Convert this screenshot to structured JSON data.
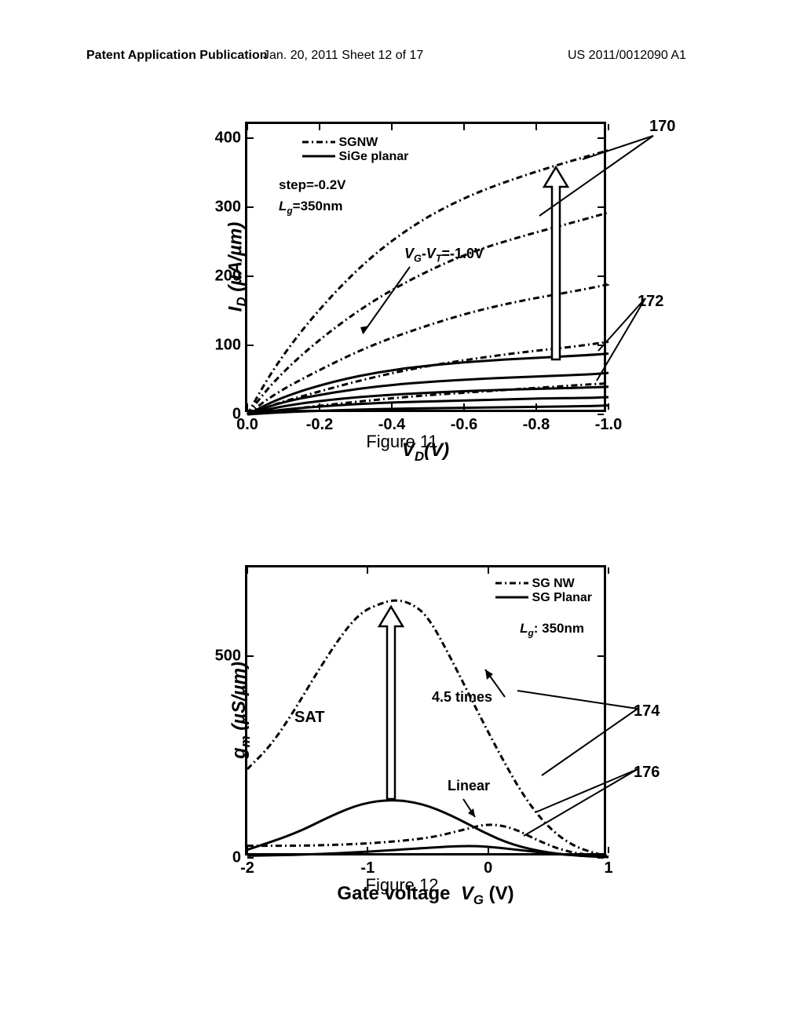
{
  "header": {
    "left": "Patent Application Publication",
    "mid": "Jan. 20, 2011  Sheet 12 of 17",
    "right": "US 2011/0012090 A1"
  },
  "fig11": {
    "type": "line",
    "caption": "Figure 11",
    "y_label_var": "I",
    "y_label_sub": "D",
    "y_label_unit": "(µA/µm)",
    "x_label_var": "V",
    "x_label_sub": "D",
    "x_label_unit": "(V)",
    "y_ticks": [
      0,
      100,
      200,
      300,
      400
    ],
    "x_ticks": [
      "0.0",
      "-0.2",
      "-0.4",
      "-0.6",
      "-0.8",
      "-1.0"
    ],
    "ylim": [
      0,
      420
    ],
    "xlim": [
      0,
      1.05
    ],
    "legend": {
      "sgnw": "SGNW",
      "planar": "SiGe planar"
    },
    "step_label": "step=-0.2V",
    "lg_label_var": "L",
    "lg_label_sub": "g",
    "lg_label_rest": "=350nm",
    "vg_label": "V",
    "vg_sub": "G",
    "vt_label": "-V",
    "vt_sub": "T",
    "vg_rest": "=-1.0V",
    "callout_170": "170",
    "callout_172": "172",
    "sgnw_curves": [
      [
        [
          0,
          0
        ],
        [
          0.08,
          70
        ],
        [
          0.2,
          148
        ],
        [
          0.35,
          225
        ],
        [
          0.5,
          280
        ],
        [
          0.65,
          318
        ],
        [
          0.8,
          345
        ],
        [
          0.95,
          368
        ],
        [
          1.05,
          382
        ]
      ],
      [
        [
          0,
          0
        ],
        [
          0.08,
          50
        ],
        [
          0.2,
          105
        ],
        [
          0.35,
          160
        ],
        [
          0.5,
          202
        ],
        [
          0.65,
          235
        ],
        [
          0.8,
          258
        ],
        [
          0.95,
          278
        ],
        [
          1.05,
          292
        ]
      ],
      [
        [
          0,
          0
        ],
        [
          0.08,
          30
        ],
        [
          0.2,
          62
        ],
        [
          0.35,
          98
        ],
        [
          0.5,
          125
        ],
        [
          0.65,
          148
        ],
        [
          0.8,
          165
        ],
        [
          0.95,
          178
        ],
        [
          1.05,
          188
        ]
      ],
      [
        [
          0,
          0
        ],
        [
          0.08,
          15
        ],
        [
          0.2,
          32
        ],
        [
          0.35,
          52
        ],
        [
          0.5,
          68
        ],
        [
          0.65,
          80
        ],
        [
          0.8,
          90
        ],
        [
          0.95,
          98
        ],
        [
          1.05,
          105
        ]
      ],
      [
        [
          0,
          0
        ],
        [
          0.08,
          5
        ],
        [
          0.2,
          12
        ],
        [
          0.35,
          20
        ],
        [
          0.5,
          27
        ],
        [
          0.65,
          32
        ],
        [
          0.8,
          37
        ],
        [
          0.95,
          42
        ],
        [
          1.05,
          45
        ]
      ]
    ],
    "planar_curves": [
      [
        [
          0,
          0
        ],
        [
          0.1,
          25
        ],
        [
          0.25,
          48
        ],
        [
          0.4,
          63
        ],
        [
          0.55,
          72
        ],
        [
          0.7,
          78
        ],
        [
          0.85,
          82
        ],
        [
          1.0,
          86
        ],
        [
          1.05,
          88
        ]
      ],
      [
        [
          0,
          0
        ],
        [
          0.1,
          18
        ],
        [
          0.25,
          32
        ],
        [
          0.4,
          42
        ],
        [
          0.55,
          48
        ],
        [
          0.7,
          52
        ],
        [
          0.85,
          55
        ],
        [
          1.0,
          58
        ],
        [
          1.05,
          60
        ]
      ],
      [
        [
          0,
          0
        ],
        [
          0.1,
          12
        ],
        [
          0.25,
          22
        ],
        [
          0.4,
          28
        ],
        [
          0.55,
          32
        ],
        [
          0.7,
          35
        ],
        [
          0.85,
          37
        ],
        [
          1.0,
          39
        ],
        [
          1.05,
          40
        ]
      ],
      [
        [
          0,
          0
        ],
        [
          0.1,
          7
        ],
        [
          0.25,
          13
        ],
        [
          0.4,
          17
        ],
        [
          0.55,
          19
        ],
        [
          0.7,
          21
        ],
        [
          0.85,
          23
        ],
        [
          1.0,
          24
        ],
        [
          1.05,
          25
        ]
      ],
      [
        [
          0,
          0
        ],
        [
          0.1,
          3
        ],
        [
          0.25,
          6
        ],
        [
          0.4,
          8
        ],
        [
          0.55,
          9
        ],
        [
          0.7,
          10
        ],
        [
          0.85,
          11
        ],
        [
          1.0,
          12
        ],
        [
          1.05,
          13
        ]
      ]
    ],
    "colors": {
      "sgnw": "#000000",
      "planar": "#000000",
      "axis": "#000000"
    },
    "line_width": 3,
    "dash": "8,4,2,4"
  },
  "fig12": {
    "type": "line",
    "caption": "Figure 12",
    "y_label_var": "g",
    "y_label_sub": "m",
    "y_label_unit": "(µS/µm)",
    "x_label_pre": "Gate voltage ",
    "x_label_var": "V",
    "x_label_sub": "G",
    "x_label_unit": "(V)",
    "y_ticks": [
      0,
      500
    ],
    "x_ticks": [
      "-2",
      "-1",
      "0",
      "1"
    ],
    "ylim": [
      0,
      720
    ],
    "xlim": [
      -2,
      1
    ],
    "legend": {
      "sgnw": "SG NW",
      "planar": "SG Planar"
    },
    "lg_label_var": "L",
    "lg_label_sub": "g",
    "lg_label_rest": ": 350nm",
    "sat_label": "SAT",
    "times_label": "4.5 times",
    "linear_label": "Linear",
    "callout_174": "174",
    "callout_176": "176",
    "sgnw_sat": [
      [
        -2,
        220
      ],
      [
        -1.8,
        280
      ],
      [
        -1.6,
        370
      ],
      [
        -1.4,
        470
      ],
      [
        -1.2,
        560
      ],
      [
        -1.05,
        610
      ],
      [
        -0.9,
        630
      ],
      [
        -0.78,
        640
      ],
      [
        -0.65,
        633
      ],
      [
        -0.5,
        600
      ],
      [
        -0.3,
        490
      ],
      [
        -0.1,
        370
      ],
      [
        0.1,
        255
      ],
      [
        0.3,
        150
      ],
      [
        0.5,
        75
      ],
      [
        0.7,
        30
      ],
      [
        0.9,
        10
      ],
      [
        1,
        5
      ]
    ],
    "sgnw_lin": [
      [
        -2,
        30
      ],
      [
        -1.5,
        30
      ],
      [
        -1,
        35
      ],
      [
        -0.5,
        48
      ],
      [
        -0.2,
        70
      ],
      [
        0,
        85
      ],
      [
        0.2,
        75
      ],
      [
        0.4,
        45
      ],
      [
        0.6,
        20
      ],
      [
        0.8,
        8
      ],
      [
        1,
        3
      ]
    ],
    "planar_sat": [
      [
        -2,
        20
      ],
      [
        -1.6,
        60
      ],
      [
        -1.3,
        105
      ],
      [
        -1.05,
        135
      ],
      [
        -0.8,
        145
      ],
      [
        -0.55,
        135
      ],
      [
        -0.3,
        105
      ],
      [
        -0.05,
        65
      ],
      [
        0.2,
        32
      ],
      [
        0.5,
        12
      ],
      [
        0.8,
        4
      ],
      [
        1,
        2
      ]
    ],
    "planar_lin": [
      [
        -2,
        5
      ],
      [
        -1.5,
        8
      ],
      [
        -1,
        15
      ],
      [
        -0.5,
        25
      ],
      [
        -0.2,
        30
      ],
      [
        0,
        28
      ],
      [
        0.3,
        18
      ],
      [
        0.6,
        8
      ],
      [
        1,
        2
      ]
    ],
    "colors": {
      "sgnw": "#000000",
      "planar": "#000000"
    },
    "line_width": 3,
    "dash": "8,4,2,4"
  }
}
